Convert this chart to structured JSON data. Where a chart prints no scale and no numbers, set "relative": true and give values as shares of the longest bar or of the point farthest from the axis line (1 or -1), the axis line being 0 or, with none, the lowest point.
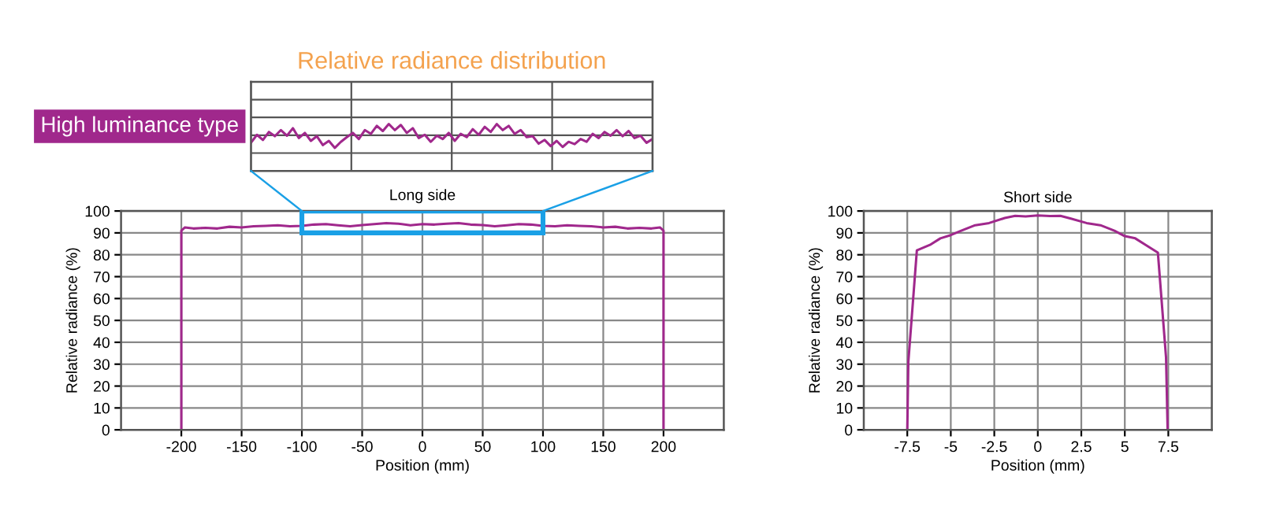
{
  "chart_data": [
    {
      "type": "line",
      "title": "Relative radiance distribution",
      "relative": true,
      "grid": true,
      "categories": [
        null,
        null,
        null,
        null,
        null,
        null,
        null,
        null,
        null,
        null,
        null,
        null,
        null,
        null,
        null,
        null,
        null,
        null,
        null,
        null,
        null,
        null,
        null,
        null,
        null,
        null,
        null,
        null,
        null,
        null,
        null,
        null,
        null,
        null,
        null,
        null,
        null,
        null,
        null,
        null,
        null,
        null,
        null,
        null,
        null,
        null,
        null,
        null,
        null,
        null,
        null,
        null,
        null,
        null,
        null,
        null,
        null,
        null,
        null,
        null,
        null,
        null,
        null,
        null,
        null,
        null,
        null,
        null
      ],
      "series": [
        {
          "name": "High luminance type",
          "color": "#a0288c",
          "values": [
            0.6,
            0.77,
            0.66,
            0.83,
            0.74,
            0.87,
            0.75,
            0.91,
            0.7,
            0.81,
            0.64,
            0.74,
            0.55,
            0.64,
            0.49,
            0.62,
            0.72,
            0.81,
            0.68,
            0.87,
            0.79,
            0.96,
            0.85,
            1,
            0.87,
            0.98,
            0.81,
            0.91,
            0.7,
            0.77,
            0.62,
            0.75,
            0.68,
            0.81,
            0.64,
            0.79,
            0.72,
            0.89,
            0.77,
            0.94,
            0.83,
            1,
            0.87,
            0.96,
            0.79,
            0.87,
            0.72,
            0.74,
            0.58,
            0.66,
            0.53,
            0.64,
            0.51,
            0.62,
            0.57,
            0.68,
            0.62,
            0.79,
            0.7,
            0.83,
            0.75,
            0.87,
            0.74,
            0.85,
            0.7,
            0.75,
            0.6,
            0.68
          ]
        }
      ]
    },
    {
      "type": "line",
      "title": "Long side",
      "xlabel": "Position (mm)",
      "ylabel": "Relative radiance (%)",
      "xlim": [
        -250,
        250
      ],
      "ylim": [
        0,
        100
      ],
      "xticks": [
        -200,
        -150,
        -100,
        -50,
        0,
        50,
        100,
        150,
        200
      ],
      "yticks": [
        0,
        10,
        20,
        30,
        40,
        50,
        60,
        70,
        80,
        90,
        100
      ],
      "grid": true,
      "series": [
        {
          "color": "#a0288c",
          "x": [
            -200,
            -200,
            -197,
            -190,
            -180,
            -170,
            -160,
            -150,
            -140,
            -130,
            -120,
            -110,
            -100,
            -90,
            -80,
            -70,
            -60,
            -50,
            -40,
            -30,
            -20,
            -10,
            0,
            10,
            20,
            30,
            40,
            50,
            60,
            70,
            80,
            90,
            100,
            110,
            120,
            130,
            140,
            150,
            160,
            170,
            180,
            190,
            197,
            200,
            200
          ],
          "values": [
            0,
            91,
            92.5,
            92,
            92.3,
            92,
            92.8,
            92.5,
            93,
            93.2,
            93.5,
            93,
            93.2,
            93.8,
            94,
            93.5,
            93,
            93.6,
            94,
            94.5,
            94.2,
            93.5,
            94,
            93.8,
            94.2,
            94.5,
            93.8,
            93.6,
            93,
            93.5,
            94,
            93.8,
            93.2,
            93,
            93.5,
            93.2,
            93,
            92.5,
            92.8,
            92,
            92.3,
            92,
            92.5,
            91,
            0
          ]
        }
      ]
    },
    {
      "type": "line",
      "title": "Short side",
      "xlabel": "Position (mm)",
      "ylabel": "Relative radiance (%)",
      "xlim": [
        -10,
        10
      ],
      "ylim": [
        0,
        100
      ],
      "xticks": [
        -7.5,
        -5,
        -2.5,
        0,
        2.5,
        5,
        7.5
      ],
      "yticks": [
        0,
        10,
        20,
        30,
        40,
        50,
        60,
        70,
        80,
        90,
        100
      ],
      "grid": true,
      "series": [
        {
          "color": "#a0288c",
          "x": [
            -7.5,
            -7.44,
            -6.95,
            -6.2,
            -5.6,
            -5.0,
            -4.4,
            -3.6,
            -2.8,
            -1.9,
            -1.3,
            -0.7,
            0,
            0.7,
            1.3,
            1.9,
            2.8,
            3.6,
            4.4,
            5.0,
            5.6,
            6.2,
            6.9,
            7.37,
            7.46
          ],
          "values": [
            0,
            31,
            82,
            84.5,
            87.5,
            89,
            91,
            93.5,
            94.5,
            96.8,
            97.8,
            97.5,
            98,
            97.7,
            97.8,
            96.5,
            94.5,
            93.5,
            91,
            88.5,
            87.5,
            84.5,
            81,
            33,
            0
          ]
        }
      ]
    }
  ]
}
